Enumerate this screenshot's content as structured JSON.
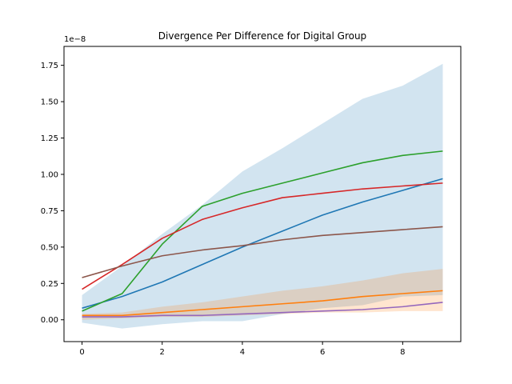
{
  "chart_data": {
    "type": "line",
    "title": "Divergence Per Difference for Digital Group",
    "xlabel": "",
    "ylabel": "",
    "y_scale_note": "1e−8",
    "xlim": [
      -0.45,
      9.45
    ],
    "ylim": [
      -0.15,
      1.88
    ],
    "x_ticks": [
      0,
      2,
      4,
      6,
      8
    ],
    "y_ticks": [
      0.0,
      0.25,
      0.5,
      0.75,
      1.0,
      1.25,
      1.5,
      1.75
    ],
    "x_tick_labels": [
      "0",
      "2",
      "4",
      "6",
      "8"
    ],
    "y_tick_labels": [
      "0.00",
      "0.25",
      "0.50",
      "0.75",
      "1.00",
      "1.25",
      "1.50",
      "1.75"
    ],
    "grid": false,
    "legend": "none",
    "x": [
      0,
      1,
      2,
      3,
      4,
      5,
      6,
      7,
      8,
      9
    ],
    "bands": [
      {
        "color": "#1f77b4",
        "opacity": 0.2,
        "lower": [
          -0.02,
          -0.06,
          -0.03,
          -0.01,
          -0.01,
          0.04,
          0.08,
          0.1,
          0.16,
          0.17
        ],
        "upper": [
          0.17,
          0.37,
          0.59,
          0.79,
          1.02,
          1.18,
          1.35,
          1.52,
          1.61,
          1.76
        ]
      },
      {
        "color": "#ff7f0e",
        "opacity": 0.2,
        "lower": [
          0.0,
          0.01,
          0.02,
          0.02,
          0.03,
          0.04,
          0.05,
          0.05,
          0.06,
          0.06
        ],
        "upper": [
          0.04,
          0.05,
          0.09,
          0.12,
          0.16,
          0.2,
          0.23,
          0.27,
          0.32,
          0.35
        ]
      }
    ],
    "series": [
      {
        "color": "#1f77b4",
        "values": [
          0.08,
          0.16,
          0.26,
          0.38,
          0.5,
          0.61,
          0.72,
          0.81,
          0.89,
          0.97
        ]
      },
      {
        "color": "#ff7f0e",
        "values": [
          0.03,
          0.03,
          0.05,
          0.07,
          0.09,
          0.11,
          0.13,
          0.16,
          0.18,
          0.2
        ]
      },
      {
        "color": "#2ca02c",
        "values": [
          0.06,
          0.18,
          0.52,
          0.78,
          0.87,
          0.94,
          1.01,
          1.08,
          1.13,
          1.16
        ]
      },
      {
        "color": "#d62728",
        "values": [
          0.21,
          0.38,
          0.56,
          0.69,
          0.77,
          0.84,
          0.87,
          0.9,
          0.92,
          0.94
        ]
      },
      {
        "color": "#9467bd",
        "values": [
          0.02,
          0.02,
          0.03,
          0.03,
          0.04,
          0.05,
          0.06,
          0.07,
          0.09,
          0.12
        ]
      },
      {
        "color": "#8c564b",
        "values": [
          0.29,
          0.37,
          0.44,
          0.48,
          0.51,
          0.55,
          0.58,
          0.6,
          0.62,
          0.64
        ]
      }
    ]
  }
}
